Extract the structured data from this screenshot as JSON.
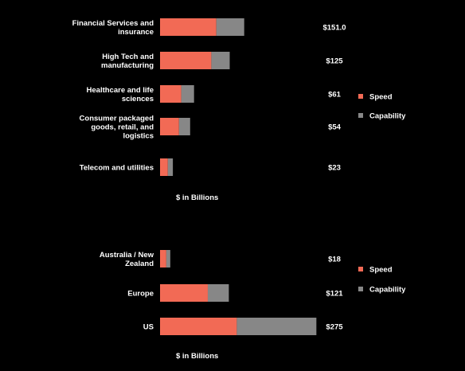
{
  "colors": {
    "speed": "#f26a55",
    "capability": "#878787",
    "background": "#000000",
    "text": "#ffffff"
  },
  "chart_data": [
    {
      "type": "bar",
      "orientation": "horizontal",
      "stacked": true,
      "categories": [
        [
          "Financial Services and",
          "insurance"
        ],
        [
          "High Tech and",
          "manufacturing"
        ],
        [
          "Healthcare and life",
          "sciences"
        ],
        [
          "Consumer packaged",
          "goods, retail, and",
          "logistics"
        ],
        [
          "Telecom and utilities"
        ]
      ],
      "totals_labels": [
        "$151.0",
        "$125",
        "$61",
        "$54",
        "$23"
      ],
      "series": [
        {
          "name": "Speed",
          "values": [
            101,
            92,
            38,
            34,
            14
          ]
        },
        {
          "name": "Capability",
          "values": [
            50,
            33,
            23,
            20,
            9
          ]
        }
      ],
      "unit_label": "$ in Billions",
      "legend_position": "right"
    },
    {
      "type": "bar",
      "orientation": "horizontal",
      "stacked": true,
      "categories": [
        [
          "Australia / New",
          "Zealand"
        ],
        [
          "Europe"
        ],
        [
          "US"
        ]
      ],
      "totals_labels": [
        "$18",
        "$121",
        "$275"
      ],
      "series": [
        {
          "name": "Speed",
          "values": [
            11,
            84,
            135
          ]
        },
        {
          "name": "Capability",
          "values": [
            7,
            37,
            140
          ]
        }
      ],
      "unit_label": "$ in Billions",
      "legend_position": "right"
    }
  ]
}
